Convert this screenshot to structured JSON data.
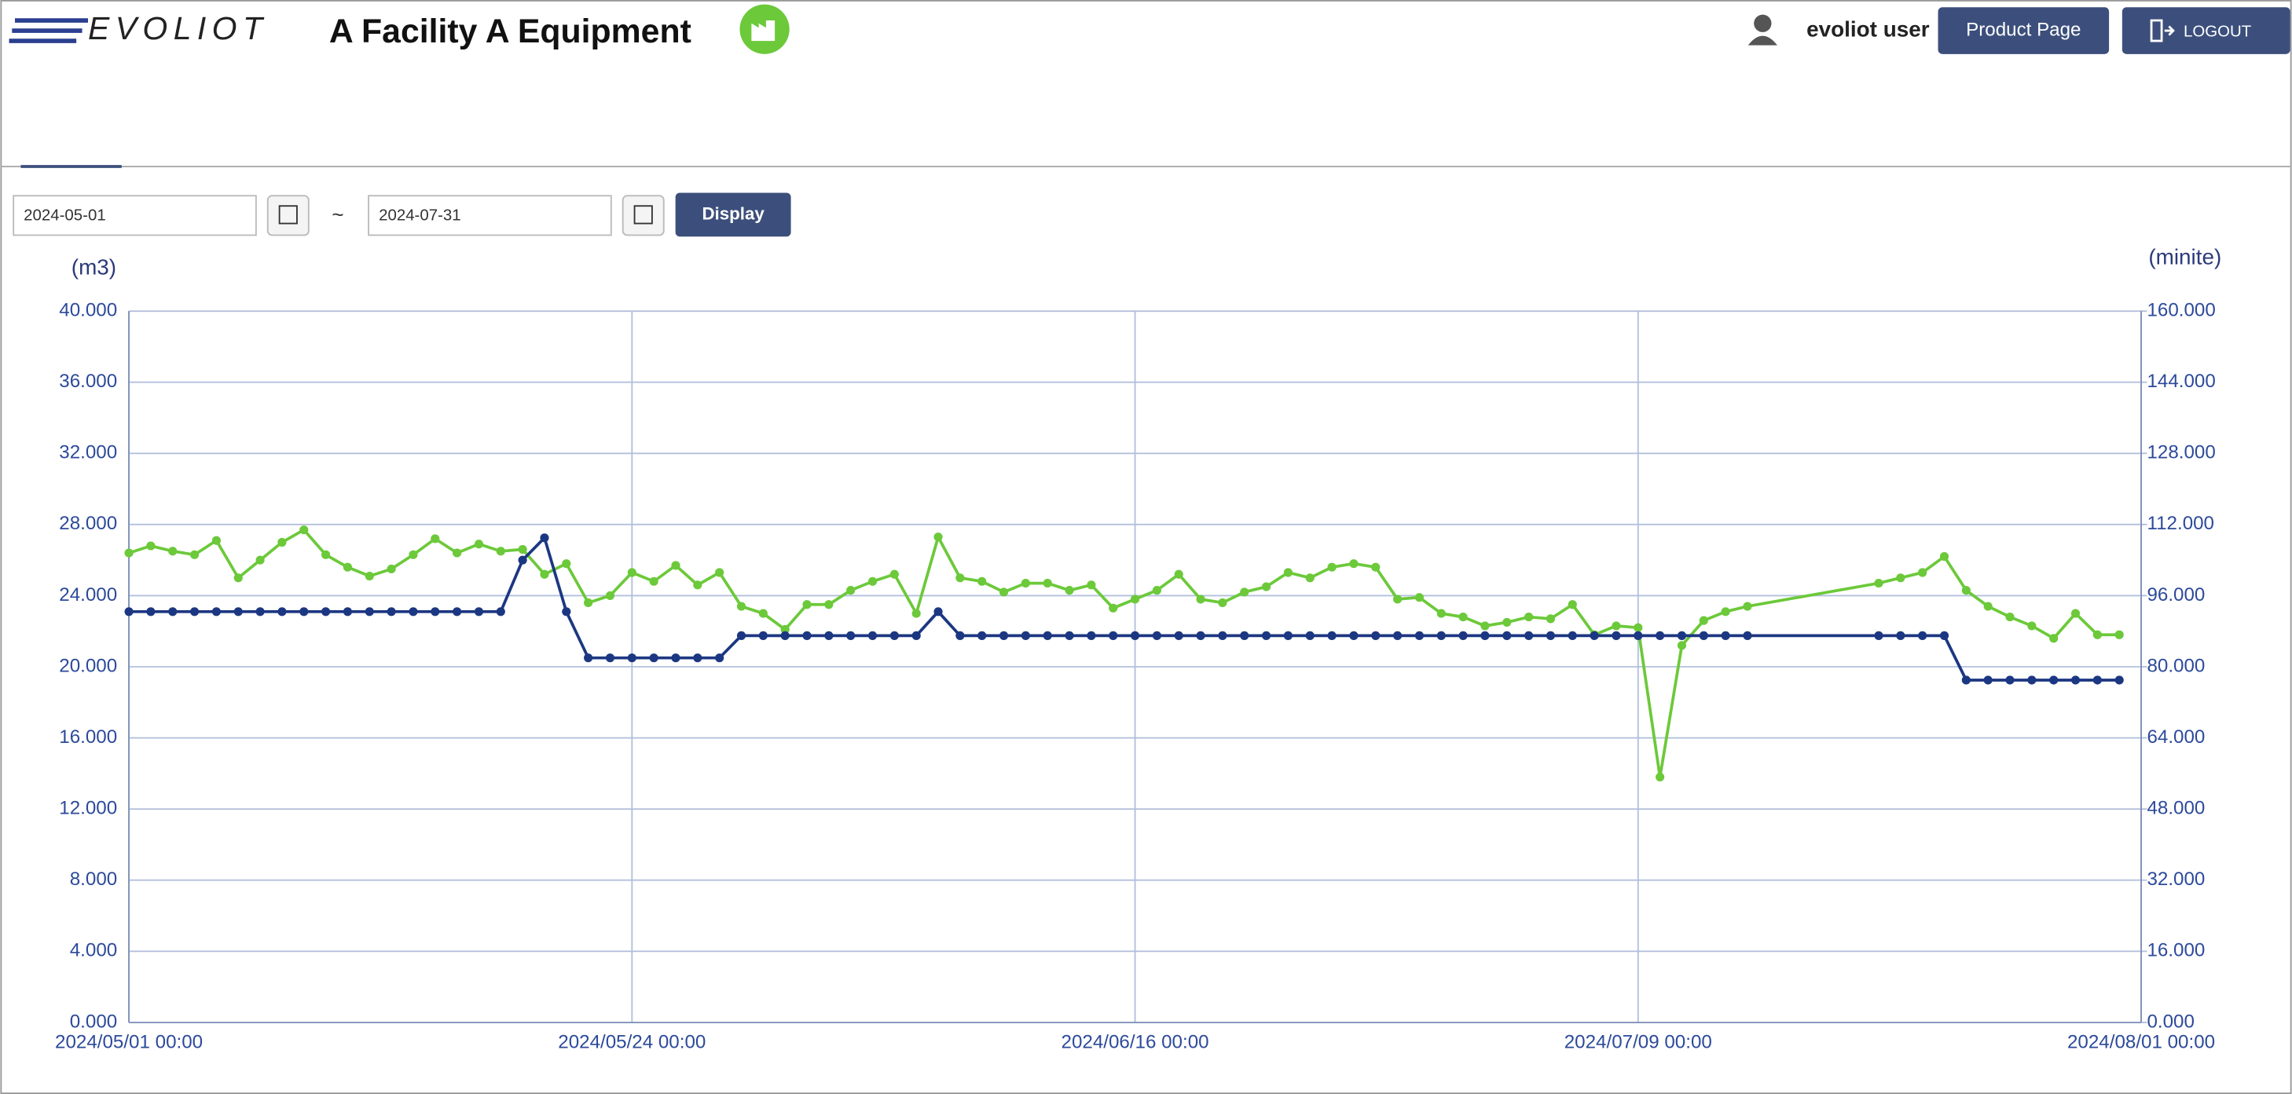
{
  "header": {
    "logo": "EVOLIOT",
    "title": "A Facility  A Equipment",
    "user": "evoliot user",
    "product_button": "Product Page",
    "logout_button": "LOGOUT"
  },
  "filter": {
    "start_date": "2024-05-01",
    "separator": "~",
    "end_date": "2024-07-31",
    "button": "Display"
  },
  "chart_data": {
    "type": "line",
    "ylabel": "(m3)",
    "y2label": "(minite)",
    "xlim": [
      "2024/05/01 00:00",
      "2024/08/01 00:00"
    ],
    "xticks": [
      "2024/05/01 00:00",
      "2024/05/24 00:00",
      "2024/06/16 00:00",
      "2024/07/09 00:00",
      "2024/08/01 00:00"
    ],
    "ylim": [
      0,
      40
    ],
    "yticks": [
      {
        "value": 0,
        "label": "0.000"
      },
      {
        "value": 4,
        "label": "4.000"
      },
      {
        "value": 8,
        "label": "8.000"
      },
      {
        "value": 12,
        "label": "12.000"
      },
      {
        "value": 16,
        "label": "16.000"
      },
      {
        "value": 20,
        "label": "20.000"
      },
      {
        "value": 24,
        "label": "24.000"
      },
      {
        "value": 28,
        "label": "28.000"
      },
      {
        "value": 32,
        "label": "32.000"
      },
      {
        "value": 36,
        "label": "36.000"
      },
      {
        "value": 40,
        "label": "40.000"
      }
    ],
    "y2lim": [
      0,
      160
    ],
    "y2ticks": [
      {
        "value": 0,
        "label": "0.000"
      },
      {
        "value": 16,
        "label": "16.000"
      },
      {
        "value": 32,
        "label": "32.000"
      },
      {
        "value": 48,
        "label": "48.000"
      },
      {
        "value": 64,
        "label": "64.000"
      },
      {
        "value": 80,
        "label": "80.000"
      },
      {
        "value": 96,
        "label": "96.000"
      },
      {
        "value": 112,
        "label": "112.000"
      },
      {
        "value": 128,
        "label": "128.000"
      },
      {
        "value": 144,
        "label": "144.000"
      },
      {
        "value": 160,
        "label": "160.000"
      }
    ],
    "grid": true,
    "x": [
      "2024/05/01 00:00",
      "2024/05/02 00:00",
      "2024/05/03 00:00",
      "2024/05/04 00:00",
      "2024/05/05 00:00",
      "2024/05/06 00:00",
      "2024/05/07 00:00",
      "2024/05/08 00:00",
      "2024/05/09 00:00",
      "2024/05/10 00:00",
      "2024/05/11 00:00",
      "2024/05/12 00:00",
      "2024/05/13 00:00",
      "2024/05/14 00:00",
      "2024/05/15 00:00",
      "2024/05/16 00:00",
      "2024/05/17 00:00",
      "2024/05/18 00:00",
      "2024/05/19 00:00",
      "2024/05/20 00:00",
      "2024/05/21 00:00",
      "2024/05/22 00:00",
      "2024/05/23 00:00",
      "2024/05/24 00:00",
      "2024/05/25 00:00",
      "2024/05/26 00:00",
      "2024/05/27 00:00",
      "2024/05/28 00:00",
      "2024/05/29 00:00",
      "2024/05/30 00:00",
      "2024/05/31 00:00",
      "2024/06/01 00:00",
      "2024/06/02 00:00",
      "2024/06/03 00:00",
      "2024/06/04 00:00",
      "2024/06/05 00:00",
      "2024/06/06 00:00",
      "2024/06/07 00:00",
      "2024/06/08 00:00",
      "2024/06/09 00:00",
      "2024/06/10 00:00",
      "2024/06/11 00:00",
      "2024/06/12 00:00",
      "2024/06/13 00:00",
      "2024/06/14 00:00",
      "2024/06/15 00:00",
      "2024/06/16 00:00",
      "2024/06/17 00:00",
      "2024/06/18 00:00",
      "2024/06/19 00:00",
      "2024/06/20 00:00",
      "2024/06/21 00:00",
      "2024/06/22 00:00",
      "2024/06/23 00:00",
      "2024/06/24 00:00",
      "2024/06/25 00:00",
      "2024/06/26 00:00",
      "2024/06/27 00:00",
      "2024/06/28 00:00",
      "2024/06/29 00:00",
      "2024/06/30 00:00",
      "2024/07/01 00:00",
      "2024/07/02 00:00",
      "2024/07/03 00:00",
      "2024/07/04 00:00",
      "2024/07/05 00:00",
      "2024/07/06 00:00",
      "2024/07/07 00:00",
      "2024/07/08 00:00",
      "2024/07/09 00:00",
      "2024/07/10 00:00",
      "2024/07/11 00:00",
      "2024/07/12 00:00",
      "2024/07/13 00:00",
      "2024/07/14 00:00",
      "2024/07/20 00:00",
      "2024/07/21 00:00",
      "2024/07/22 00:00",
      "2024/07/23 00:00",
      "2024/07/24 00:00",
      "2024/07/25 00:00",
      "2024/07/26 00:00",
      "2024/07/27 00:00",
      "2024/07/28 00:00",
      "2024/07/29 00:00",
      "2024/07/30 00:00",
      "2024/07/31 00:00"
    ],
    "series": [
      {
        "color": "#6cc93a",
        "values": [
          26.4,
          26.8,
          26.5,
          26.3,
          27.1,
          25.0,
          26.0,
          27.0,
          27.7,
          26.3,
          25.6,
          25.1,
          25.5,
          26.3,
          27.2,
          26.4,
          26.9,
          26.5,
          26.6,
          25.2,
          25.8,
          23.6,
          24.0,
          25.3,
          24.8,
          25.7,
          24.6,
          25.3,
          23.4,
          23.0,
          22.1,
          23.5,
          23.5,
          24.3,
          24.8,
          25.2,
          23.0,
          27.3,
          25.0,
          24.8,
          24.2,
          24.7,
          24.7,
          24.3,
          24.6,
          23.3,
          23.8,
          24.3,
          25.2,
          23.8,
          23.6,
          24.2,
          24.5,
          25.3,
          25.0,
          25.6,
          25.8,
          25.6,
          23.8,
          23.9,
          23.0,
          22.8,
          22.3,
          22.5,
          22.8,
          22.7,
          23.5,
          21.8,
          22.3,
          22.2,
          13.8,
          21.2,
          22.6,
          23.1,
          23.4,
          24.7,
          25.0,
          25.3,
          26.2,
          24.3,
          23.4,
          22.8,
          22.3,
          21.6,
          23.0,
          21.8,
          21.8
        ]
      },
      {
        "color": "#1c3782",
        "axis": "y2",
        "values": [
          92.4,
          92.4,
          92.4,
          92.4,
          92.4,
          92.4,
          92.4,
          92.4,
          92.4,
          92.4,
          92.4,
          92.4,
          92.4,
          92.4,
          92.4,
          92.4,
          92.4,
          92.4,
          104,
          109,
          92.4,
          82,
          82,
          82,
          82,
          82,
          82,
          82,
          87,
          87,
          87,
          87,
          87,
          87,
          87,
          87,
          87,
          92.4,
          87,
          87,
          87,
          87,
          87,
          87,
          87,
          87,
          87,
          87,
          87,
          87,
          87,
          87,
          87,
          87,
          87,
          87,
          87,
          87,
          87,
          87,
          87,
          87,
          87,
          87,
          87,
          87,
          87,
          87,
          87,
          87,
          87,
          87,
          87,
          87,
          87,
          87,
          87,
          87,
          87,
          77,
          77,
          77,
          77,
          77,
          77,
          77,
          77
        ]
      }
    ]
  }
}
